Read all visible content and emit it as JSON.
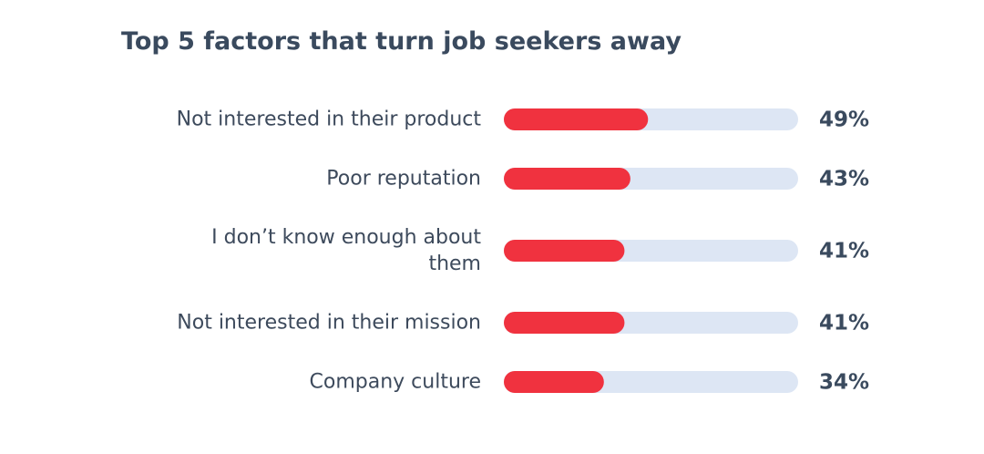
{
  "chart_data": {
    "type": "bar",
    "title": "Top 5 factors that turn job seekers away",
    "categories": [
      "Not interested in their product",
      "Poor reputation",
      "I don’t know enough about\nthem",
      "Not interested in their mission",
      "Company culture"
    ],
    "values": [
      49,
      43,
      41,
      41,
      34
    ],
    "value_labels": [
      "49%",
      "43%",
      "41%",
      "41%",
      "34%"
    ],
    "xlim": [
      0,
      100
    ],
    "color": "#f0323f",
    "track_color": "#dde6f4"
  }
}
